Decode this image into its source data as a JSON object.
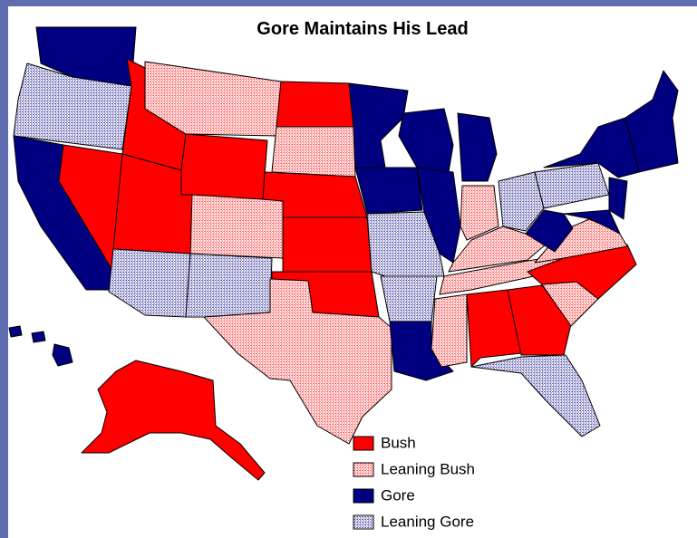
{
  "title": "Gore Maintains His Lead",
  "legend": [
    {
      "label": "Bush",
      "color": "#ff0000"
    },
    {
      "label": "Leaning Bush",
      "color": "#ff0000",
      "pattern": "dotted"
    },
    {
      "label": "Gore",
      "color": "#000080"
    },
    {
      "label": "Leaning Gore",
      "color": "#000080",
      "pattern": "dotted"
    }
  ]
}
